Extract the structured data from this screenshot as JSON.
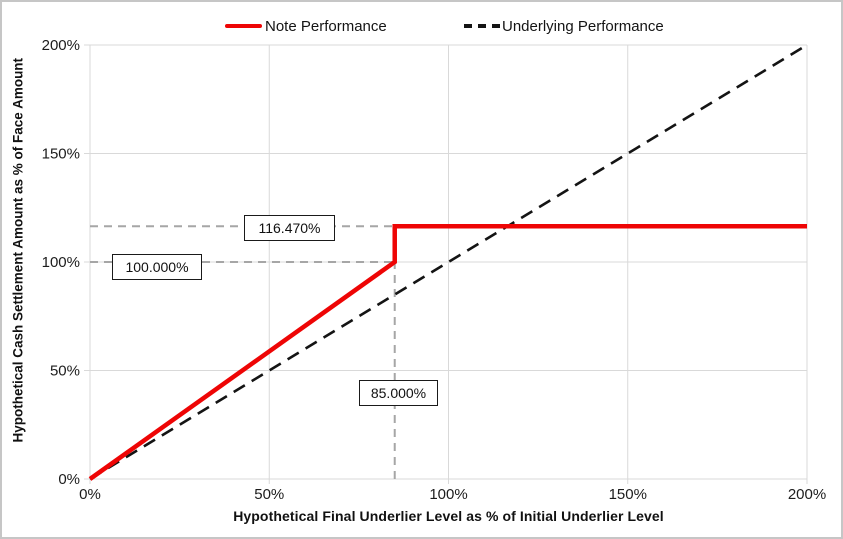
{
  "legend": {
    "items": [
      {
        "label": "Note Performance",
        "color": "#ee0505",
        "style": "solid"
      },
      {
        "label": "Underlying Performance",
        "color": "#141414",
        "style": "dashed"
      }
    ]
  },
  "chart_data": {
    "type": "line",
    "title": "",
    "xlabel": "Hypothetical Final Underlier Level as % of Initial Underlier Level",
    "ylabel": "Hypothetical Cash Settlement Amount as % of Face Amount",
    "xlim": [
      0,
      200
    ],
    "ylim": [
      0,
      200
    ],
    "x_ticks": [
      0,
      50,
      100,
      150,
      200
    ],
    "x_tick_labels": [
      "0%",
      "50%",
      "100%",
      "150%",
      "200%"
    ],
    "y_ticks": [
      0,
      50,
      100,
      150,
      200
    ],
    "y_tick_labels": [
      "0%",
      "50%",
      "100%",
      "150%",
      "200%"
    ],
    "grid": true,
    "legend_position": "top",
    "series": [
      {
        "name": "Note Performance",
        "color": "#ee0505",
        "line_style": "solid",
        "width": 4.5,
        "points": [
          [
            0,
            0
          ],
          [
            85,
            100
          ],
          [
            85,
            116.47
          ],
          [
            200,
            116.47
          ]
        ]
      },
      {
        "name": "Underlying Performance",
        "color": "#141414",
        "line_style": "dashed",
        "width": 2.6,
        "points": [
          [
            0,
            0
          ],
          [
            200,
            200
          ]
        ]
      }
    ],
    "guide_lines": [
      {
        "type": "h",
        "y": 116.47,
        "x1": 0,
        "x2": 85
      },
      {
        "type": "h",
        "y": 100,
        "x1": 0,
        "x2": 85
      },
      {
        "type": "v",
        "x": 85,
        "y1": 0,
        "y2": 116.47
      }
    ],
    "annotations": {
      "cap_level": {
        "text": "116.470%",
        "value": 116.47
      },
      "par_level": {
        "text": "100.000%",
        "value": 100
      },
      "barrier_level": {
        "text": "85.000%",
        "value": 85
      }
    },
    "colors": {
      "gridline": "#d9d9d9",
      "guide": "#a6a6a6",
      "note_line": "#ee0505",
      "underlying_line": "#141414"
    }
  }
}
